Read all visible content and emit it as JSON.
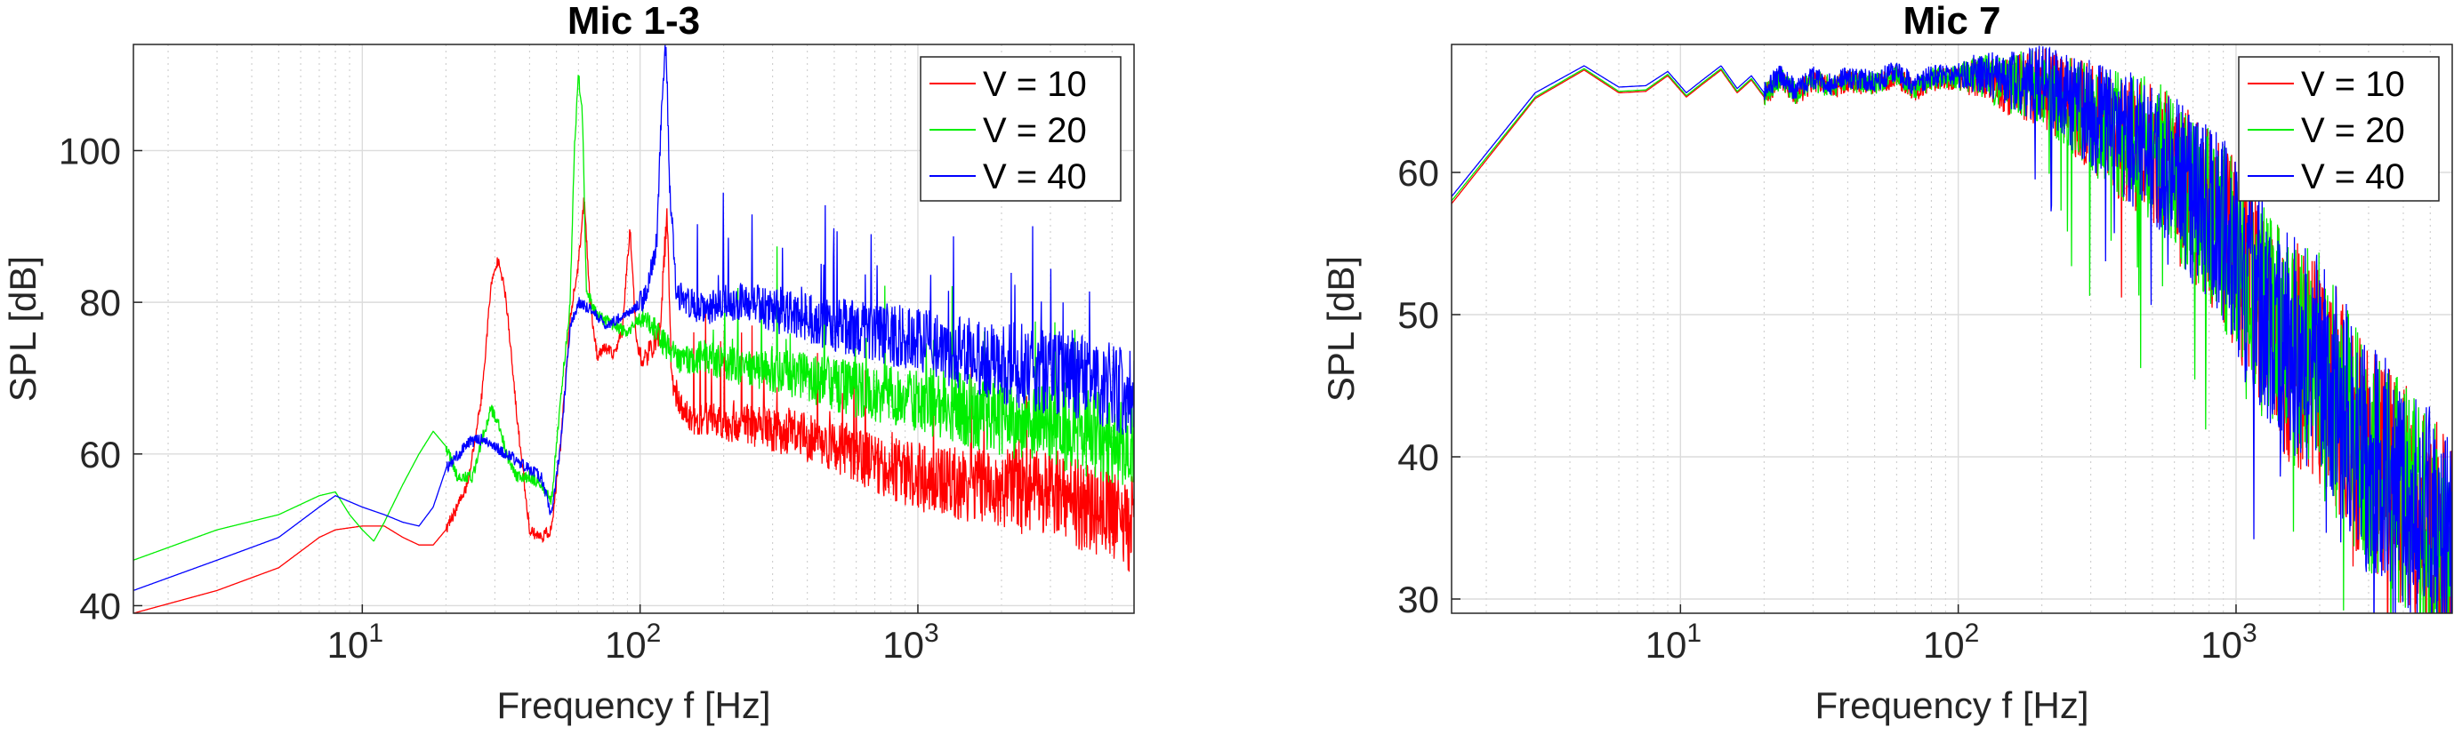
{
  "chart_data": [
    {
      "type": "line",
      "title": "Mic 1-3",
      "xlabel": "Frequency f [Hz]",
      "ylabel": "SPL [dB]",
      "xscale": "log",
      "xlim": [
        1.5,
        6000
      ],
      "ylim": [
        39,
        114
      ],
      "xticks": [
        {
          "base": "10",
          "exp": "1",
          "value": 10
        },
        {
          "base": "10",
          "exp": "2",
          "value": 100
        },
        {
          "base": "10",
          "exp": "3",
          "value": 1000
        }
      ],
      "yticks": [
        40,
        60,
        80,
        100
      ],
      "grid": true,
      "legend_position": "top-right",
      "series": [
        {
          "name": "V = 10",
          "color": "#ff0000",
          "x": [
            1.5,
            3,
            5,
            7,
            8,
            10,
            12,
            14,
            16,
            18,
            20,
            24,
            27,
            29,
            31,
            33,
            36,
            40,
            44,
            48,
            52,
            56,
            60,
            63,
            66,
            70,
            75,
            80,
            86,
            92,
            97,
            102,
            110,
            118,
            122,
            125,
            130,
            140,
            160,
            180,
            200,
            240,
            290,
            350,
            420,
            500,
            600,
            800,
            1000,
            1300,
            1700,
            2200,
            3000,
            4000,
            5000,
            6000
          ],
          "y": [
            39,
            42,
            45,
            49,
            50,
            50.5,
            50.5,
            49,
            48,
            48,
            50,
            56,
            68,
            82,
            86,
            80,
            65,
            50,
            49,
            50,
            62,
            78,
            85,
            94,
            80,
            73,
            74,
            73,
            76,
            90,
            75,
            72,
            74,
            76,
            86,
            91,
            70,
            66,
            64,
            65,
            64,
            64,
            63,
            63,
            62,
            61,
            60,
            58,
            57,
            56,
            56,
            55,
            55,
            53,
            52,
            50
          ]
        },
        {
          "name": "V = 20",
          "color": "#00ee00",
          "x": [
            1.5,
            3,
            5,
            7,
            8,
            9,
            10,
            11,
            12,
            14,
            16,
            18,
            20,
            22,
            25,
            27,
            29,
            31,
            33,
            36,
            40,
            44,
            48,
            52,
            56,
            58,
            60,
            62,
            64,
            68,
            72,
            80,
            90,
            100,
            110,
            120,
            140,
            170,
            200,
            250,
            300,
            400,
            500,
            700,
            1000,
            1500,
            2000,
            3000,
            4000,
            5000,
            6000
          ],
          "y": [
            46,
            50,
            52,
            54.5,
            55,
            52,
            50,
            48.5,
            51,
            56,
            60,
            63,
            61,
            57,
            57,
            62,
            66,
            64,
            60,
            57,
            57,
            56,
            54,
            68,
            80,
            100,
            110,
            105,
            82,
            79,
            78,
            77,
            76,
            78,
            77,
            75,
            72,
            73,
            72,
            71,
            71,
            70,
            69,
            68,
            67,
            66,
            65,
            64,
            63,
            62,
            61
          ]
        },
        {
          "name": "V = 40",
          "color": "#0000ff",
          "x": [
            1.5,
            3,
            5,
            7,
            8,
            10,
            12,
            14,
            16,
            18,
            20,
            24,
            27,
            30,
            33,
            36,
            40,
            44,
            48,
            52,
            56,
            60,
            66,
            75,
            85,
            95,
            105,
            115,
            120,
            124,
            128,
            135,
            150,
            170,
            200,
            250,
            300,
            400,
            500,
            700,
            1000,
            1500,
            2000,
            3000,
            4000,
            5000,
            6000
          ],
          "y": [
            42,
            46,
            49,
            53,
            54.5,
            53,
            52,
            51,
            50.5,
            53,
            58,
            61.5,
            62,
            61,
            60,
            59,
            58,
            57,
            52,
            62,
            77,
            80,
            79,
            77,
            78,
            79,
            81,
            88,
            108,
            114,
            95,
            81,
            80,
            79,
            80,
            80,
            79,
            78,
            77,
            76,
            75,
            73,
            72,
            71,
            70,
            69,
            68
          ]
        }
      ]
    },
    {
      "type": "line",
      "title": "Mic 7",
      "xlabel": "Frequency f [Hz]",
      "ylabel": "SPL [dB]",
      "xscale": "log",
      "xlim": [
        1.5,
        6000
      ],
      "ylim": [
        29,
        69
      ],
      "xticks": [
        {
          "base": "10",
          "exp": "1",
          "value": 10
        },
        {
          "base": "10",
          "exp": "2",
          "value": 100
        },
        {
          "base": "10",
          "exp": "3",
          "value": 1000
        }
      ],
      "yticks": [
        30,
        40,
        50,
        60
      ],
      "grid": true,
      "legend_position": "top-right",
      "series": [
        {
          "name": "V = 10",
          "color": "#ff0000",
          "x": [
            1.5,
            3,
            4.5,
            6,
            7.5,
            9,
            10.5,
            12,
            14,
            16,
            18,
            20,
            23,
            26,
            30,
            35,
            40,
            50,
            60,
            70,
            80,
            100,
            120,
            150,
            200,
            250,
            300,
            400,
            500,
            600,
            800,
            1000,
            1200,
            1500,
            2000,
            2500,
            3000,
            3500,
            4000,
            5000,
            6000
          ],
          "y": [
            57.8,
            65.2,
            67.2,
            65.6,
            65.7,
            66.8,
            65.3,
            66.2,
            67.2,
            65.6,
            66.5,
            65.3,
            66.6,
            65.4,
            66.4,
            65.9,
            66.4,
            66.1,
            66.8,
            65.8,
            66.5,
            66.6,
            66.7,
            66.1,
            66,
            64.8,
            63.8,
            62.2,
            61.5,
            59.6,
            56.7,
            54.1,
            51,
            47.6,
            46.5,
            42.6,
            39.7,
            38.9,
            37.4,
            35.3,
            32.8
          ]
        },
        {
          "name": "V = 20",
          "color": "#00ee00",
          "x": [
            1.5,
            3,
            4.5,
            6,
            7.5,
            9,
            10.5,
            12,
            14,
            16,
            18,
            20,
            23,
            26,
            30,
            35,
            40,
            50,
            60,
            70,
            80,
            100,
            120,
            150,
            200,
            250,
            300,
            400,
            500,
            600,
            800,
            1000,
            1200,
            1500,
            2000,
            2500,
            3000,
            3500,
            4000,
            5000,
            6000
          ],
          "y": [
            58,
            65.3,
            67.3,
            65.7,
            65.8,
            66.9,
            65.4,
            66.3,
            67.3,
            65.7,
            66.6,
            65.4,
            66.7,
            65.5,
            66.5,
            66,
            66.5,
            66.2,
            66.9,
            65.9,
            66.6,
            66.7,
            66.8,
            66.2,
            66.1,
            64.9,
            63.9,
            62.3,
            61.6,
            59.7,
            56.8,
            54.2,
            51.1,
            47.7,
            46.4,
            42.5,
            39.6,
            38.8,
            37.3,
            35.2,
            32.7
          ]
        },
        {
          "name": "V = 40",
          "color": "#0000ff",
          "x": [
            1.5,
            3,
            4.5,
            6,
            7.5,
            9,
            10.5,
            12,
            14,
            16,
            18,
            20,
            23,
            26,
            30,
            35,
            40,
            50,
            60,
            70,
            80,
            100,
            120,
            150,
            200,
            250,
            300,
            400,
            500,
            600,
            800,
            1000,
            1200,
            1500,
            2000,
            2500,
            3000,
            3500,
            4000,
            5000,
            6000
          ],
          "y": [
            58.3,
            65.6,
            67.5,
            66,
            66.1,
            67.1,
            65.6,
            66.5,
            67.5,
            65.9,
            66.8,
            65.6,
            66.9,
            65.7,
            66.7,
            66.2,
            66.7,
            66.4,
            67.1,
            66.1,
            66.8,
            66.9,
            67,
            66.4,
            66.3,
            65.1,
            64.1,
            62.5,
            61.8,
            59.9,
            57,
            54.4,
            51.3,
            47.9,
            46.7,
            42.8,
            39.9,
            39.1,
            37.6,
            35.5,
            33
          ]
        }
      ]
    }
  ]
}
